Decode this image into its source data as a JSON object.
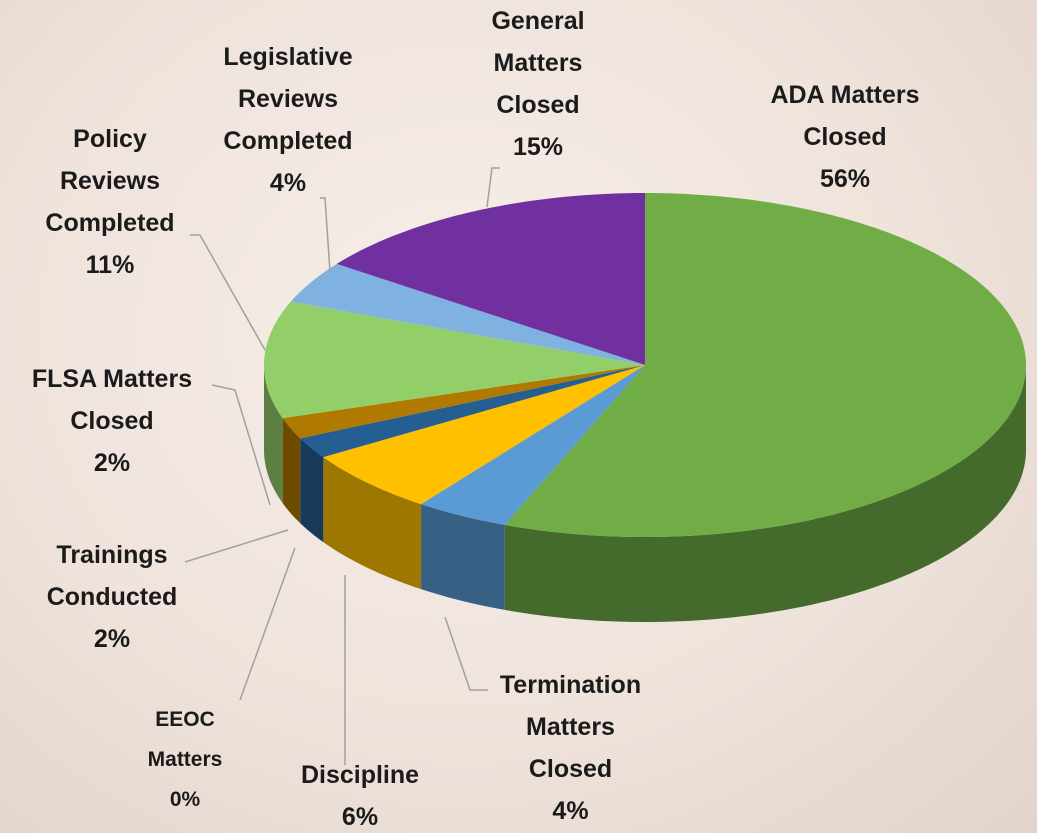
{
  "chart_data": {
    "type": "pie",
    "categories": [
      "ADA Matters Closed",
      "Termination Matters Closed",
      "Discipline",
      "EEOC Matters",
      "Trainings Conducted",
      "FLSA Matters Closed",
      "Policy Reviews Completed",
      "Legislative Reviews Completed",
      "General Matters Closed"
    ],
    "values": [
      56,
      4,
      6,
      0,
      2,
      2,
      11,
      4,
      15
    ],
    "value_labels": [
      "56%",
      "4%",
      "6%",
      "0%",
      "2%",
      "2%",
      "11%",
      "4%",
      "15%"
    ],
    "colors": [
      "#70ad47",
      "#5b9bd5",
      "#ffc000",
      "#a5a5a5",
      "#255e91",
      "#b07a00",
      "#93cf69",
      "#7fb2e0",
      "#7030a0"
    ]
  }
}
